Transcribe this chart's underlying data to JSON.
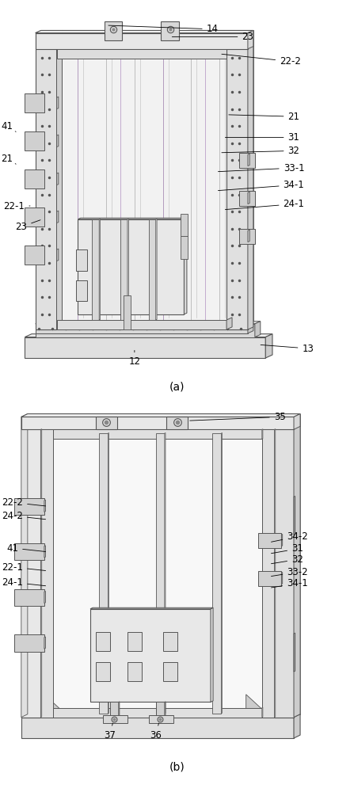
{
  "fig_width": 4.47,
  "fig_height": 10.0,
  "dpi": 100,
  "bg_color": "#ffffff",
  "edge_col": "#555555",
  "edge_thin": "#777777",
  "face_light": "#f0f0f0",
  "face_mid": "#e0e0e0",
  "face_dark": "#d0d0d0",
  "face_side": "#c8c8c8",
  "face_back": "#f5f5f5",
  "face_base": "#e4e4e4",
  "purple": "#b090c0",
  "caption_a": "(a)",
  "caption_b": "(b)"
}
